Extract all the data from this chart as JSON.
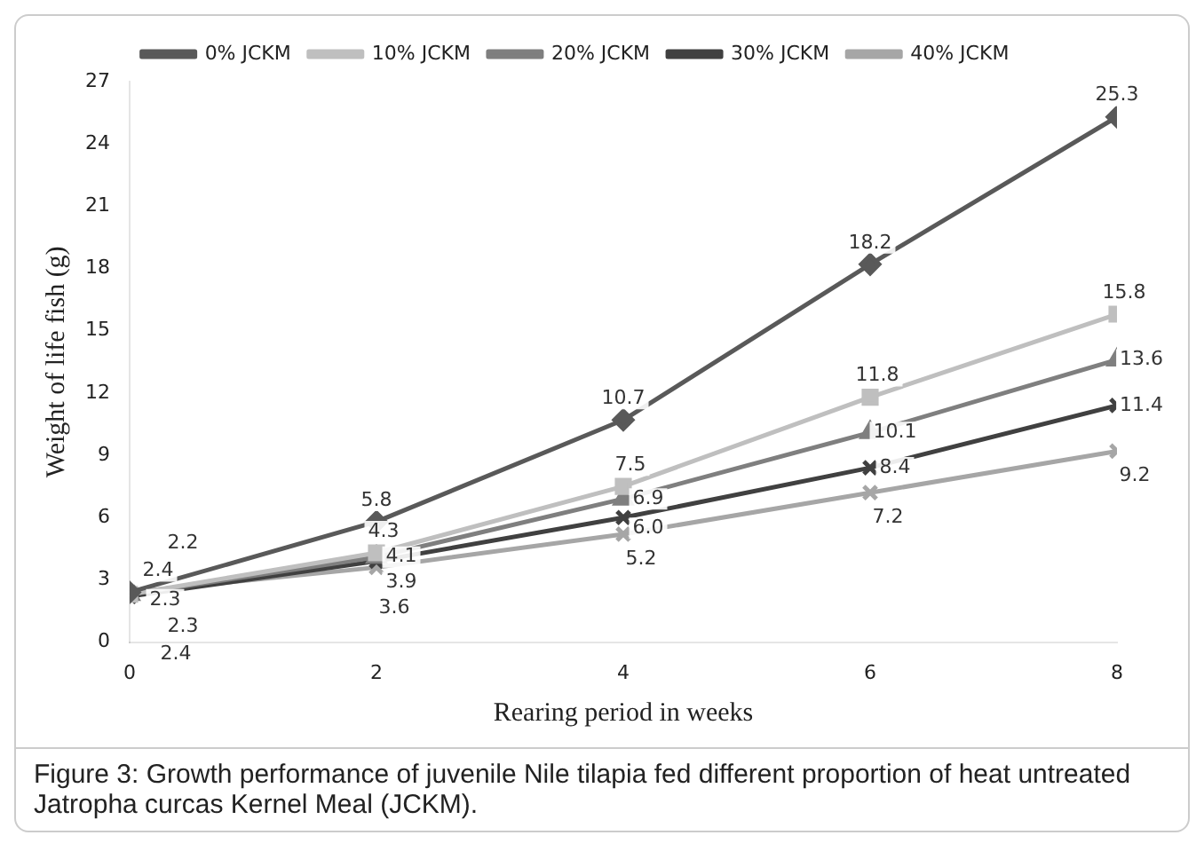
{
  "chart_data": {
    "type": "line",
    "xlabel": "Rearing period in weeks",
    "ylabel": "Weight of life fish (g)",
    "x": [
      0,
      2,
      4,
      6,
      8
    ],
    "xlim": [
      0,
      8
    ],
    "xticks": [
      0,
      2,
      4,
      6,
      8
    ],
    "ylim": [
      0,
      27
    ],
    "yticks": [
      0,
      3,
      6,
      9,
      12,
      15,
      18,
      21,
      24,
      27
    ],
    "grid": false,
    "legend": "top",
    "line_style": "solid",
    "series": [
      {
        "name": "0% JCKM",
        "color": "#595959",
        "marker": "diamond",
        "values": [
          2.4,
          5.8,
          10.7,
          18.2,
          25.3
        ],
        "value_labels": [
          "2.4",
          "5.8",
          "10.7",
          "18.2",
          "25.3"
        ]
      },
      {
        "name": "10% JCKM",
        "color": "#bfbfbf",
        "marker": "square",
        "values": [
          2.3,
          4.3,
          7.5,
          11.8,
          15.8
        ],
        "value_labels": [
          "2.3",
          "4.3",
          "7.5",
          "11.8",
          "15.8"
        ]
      },
      {
        "name": "20% JCKM",
        "color": "#7f7f7f",
        "marker": "triangle",
        "values": [
          2.3,
          4.1,
          6.9,
          10.1,
          13.6
        ],
        "value_labels": [
          "2.3",
          "4.1",
          "6.9",
          "10.1",
          "13.6"
        ]
      },
      {
        "name": "30% JCKM",
        "color": "#404040",
        "marker": "cross",
        "values": [
          2.2,
          3.9,
          6.0,
          8.4,
          11.4
        ],
        "value_labels": [
          "2.2",
          "3.9",
          "6.0",
          "8.4",
          "11.4"
        ]
      },
      {
        "name": "40% JCKM",
        "color": "#a6a6a6",
        "marker": "cross",
        "values": [
          2.4,
          3.6,
          5.2,
          7.2,
          9.2
        ],
        "value_labels": [
          "2.4",
          "3.6",
          "5.2",
          "7.2",
          "9.2"
        ]
      }
    ],
    "annotations": [
      "Figure 3: Growth performance of juvenile Nile tilapia fed different proportion of heat untreated Jatropha curcas Kernel Meal (JCKM)."
    ]
  }
}
